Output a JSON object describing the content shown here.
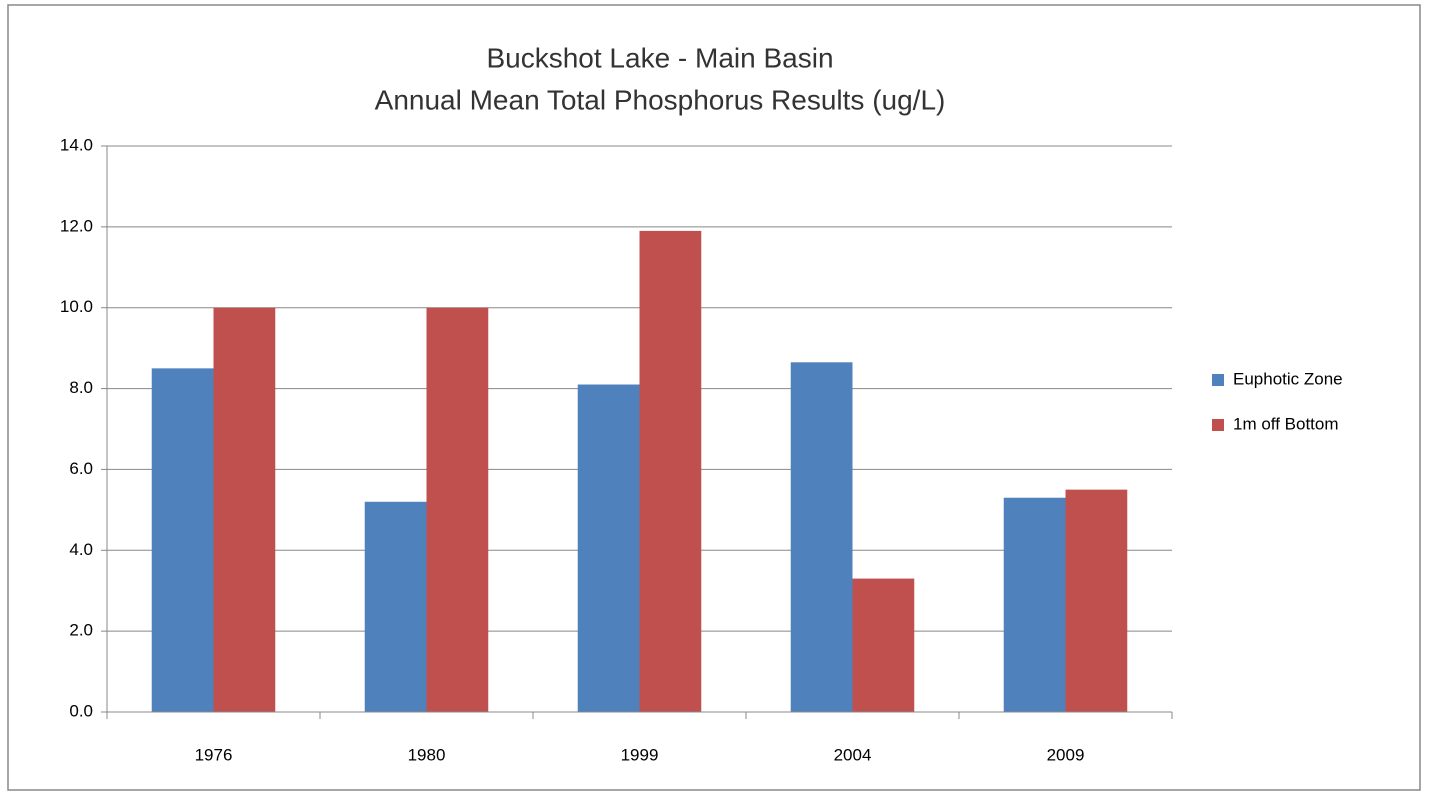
{
  "chart_data": {
    "type": "bar",
    "title": "Buckshot Lake - Main Basin",
    "subtitle": "Annual Mean Total Phosphorus Results (ug/L)",
    "categories": [
      "1976",
      "1980",
      "1999",
      "2004",
      "2009"
    ],
    "series": [
      {
        "name": "Euphotic Zone",
        "color": "#4f81bd",
        "values": [
          8.5,
          5.2,
          8.1,
          8.65,
          5.3
        ]
      },
      {
        "name": "1m off Bottom",
        "color": "#c0504d",
        "values": [
          10.0,
          10.0,
          11.9,
          3.3,
          5.5
        ]
      }
    ],
    "ylim": [
      0,
      14
    ],
    "yticks": [
      {
        "value": 0,
        "label": "0.0"
      },
      {
        "value": 2,
        "label": "2.0"
      },
      {
        "value": 4,
        "label": "4.0"
      },
      {
        "value": 6,
        "label": "6.0"
      },
      {
        "value": 8,
        "label": "8.0"
      },
      {
        "value": 10,
        "label": "10.0"
      },
      {
        "value": 12,
        "label": "12.0"
      },
      {
        "value": 14,
        "label": "14.0"
      }
    ],
    "grid": true,
    "legend": "right"
  }
}
